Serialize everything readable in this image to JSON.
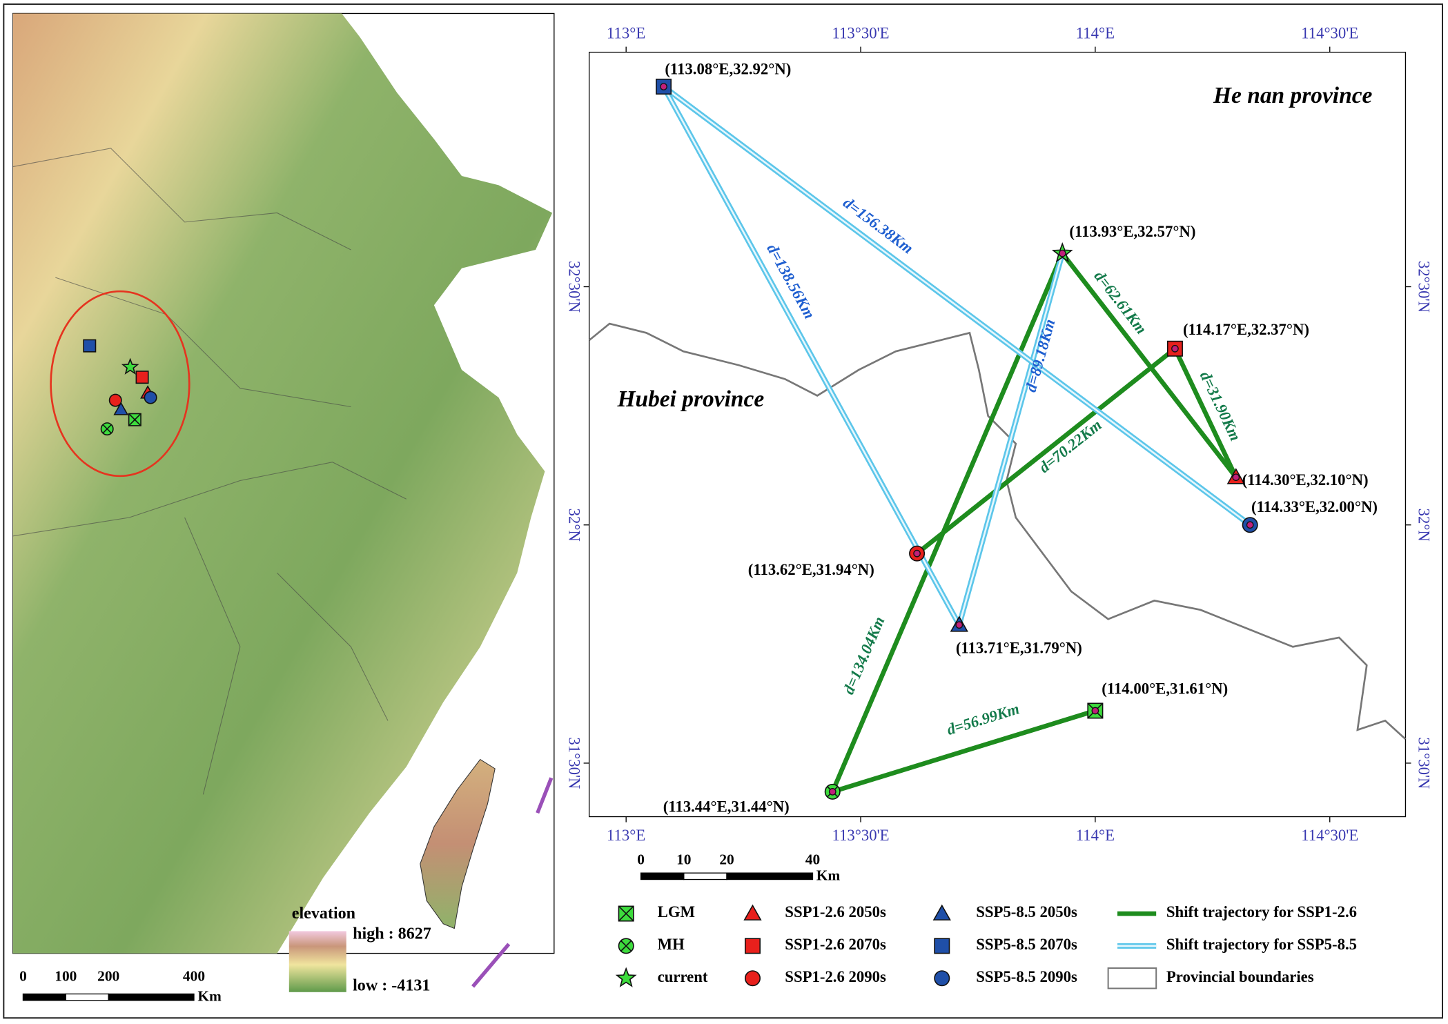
{
  "left_map": {
    "legend_title": "elevation",
    "high": "high : 8627",
    "low": "low : -4131",
    "scale_ticks": [
      0,
      100,
      200,
      400
    ],
    "scale_unit": "Km"
  },
  "right_map": {
    "xticks": [
      {
        "value": 113,
        "label": "113°E"
      },
      {
        "value": 113.5,
        "label": "113°30'E"
      },
      {
        "value": 114,
        "label": "114°E"
      },
      {
        "value": 114.5,
        "label": "114°30'E"
      }
    ],
    "yticks": [
      {
        "value": 32.5,
        "label": "32°30'N"
      },
      {
        "value": 32,
        "label": "32°N"
      },
      {
        "value": 31.5,
        "label": "31°30'N"
      }
    ],
    "regions": [
      "He nan province",
      "Hubei province"
    ],
    "points": [
      {
        "label": "(114.00°E,31.61°N)",
        "lon": 114.0,
        "lat": 31.61
      },
      {
        "label": "(113.44°E,31.44°N)",
        "lon": 113.44,
        "lat": 31.44
      },
      {
        "label": "(113.93°E,32.57°N)",
        "lon": 113.93,
        "lat": 32.57
      },
      {
        "label": "(114.30°E,32.10°N)",
        "lon": 114.3,
        "lat": 32.1
      },
      {
        "label": "(114.17°E,32.37°N)",
        "lon": 114.17,
        "lat": 32.37
      },
      {
        "label": "(113.62°E,31.94°N)",
        "lon": 113.62,
        "lat": 31.94
      },
      {
        "label": "(113.71°E,31.79°N)",
        "lon": 113.71,
        "lat": 31.79
      },
      {
        "label": "(113.08°E,32.92°N)",
        "lon": 113.08,
        "lat": 32.92
      },
      {
        "label": "(114.33°E,32.00°N)",
        "lon": 114.33,
        "lat": 32.0
      }
    ],
    "trajectories": [
      {
        "color": "#1e8c1e",
        "distances": [
          "d=56.99Km",
          "d=134.04Km",
          "d=62.61Km",
          "d=31.90Km",
          "d=70.22Km"
        ]
      },
      {
        "color": "#5cc6ea",
        "distances": [
          "d=89.18Km",
          "d=138.56Km",
          "d=156.38Km"
        ]
      }
    ],
    "scale_ticks": [
      0,
      10,
      20,
      40
    ],
    "scale_unit": "Km"
  },
  "legend": [
    "LGM",
    "MH",
    "current",
    "SSP1-2.6 2050s",
    "SSP1-2.6 2070s",
    "SSP1-2.6 2090s",
    "SSP5-8.5 2050s",
    "SSP5-8.5 2070s",
    "SSP5-8.5 2090s",
    "Shift trajectory for SSP1-2.6",
    "Shift trajectory for SSP5-8.5",
    "Provincial boundaries"
  ]
}
